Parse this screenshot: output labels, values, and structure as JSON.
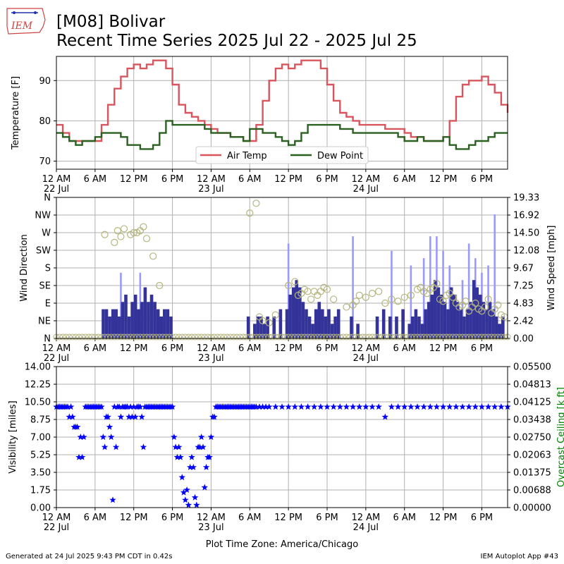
{
  "header": {
    "title_line1": "[M08] Bolivar",
    "title_line2": "Recent Time Series 2025 Jul 22 - 2025 Jul 25",
    "logo_text": "IEM"
  },
  "footer": {
    "left": "Generated at 24 Jul 2025 9:43 PM CDT in 0.42s",
    "right": "IEM Autoplot App #43"
  },
  "colors": {
    "air_temp": "#d9555e",
    "dew_point": "#2b6120",
    "wind_bar": "#333399",
    "wind_gust": "#9999ff",
    "wind_dir": "#b5b57d",
    "visibility": "#0000ff",
    "ceiling_label": "#008000",
    "grid": "#b0b0b0"
  },
  "x_axis": {
    "tick_labels": [
      "12 AM",
      "6 AM",
      "12 PM",
      "6 PM",
      "12 AM",
      "6 AM",
      "12 PM",
      "6 PM",
      "12 AM",
      "6 AM",
      "12 PM",
      "6 PM"
    ],
    "date_labels": [
      "22 Jul",
      "23 Jul",
      "24 Jul"
    ],
    "xlabel": "Plot Time Zone: America/Chicago",
    "range_hours": [
      0,
      70
    ]
  },
  "chart_data": [
    {
      "type": "line",
      "title": "",
      "ylabel": "Temperature [F]",
      "ylim": [
        68,
        96
      ],
      "yticks": [
        "70",
        "80",
        "90"
      ],
      "ytick_values": [
        70,
        80,
        90
      ],
      "grid": true,
      "legend_position": "bottom-center",
      "series": [
        {
          "name": "Air Temp",
          "x": [
            0,
            1,
            2,
            3,
            4,
            5,
            6,
            7,
            8,
            9,
            10,
            11,
            12,
            13,
            14,
            15,
            16,
            17,
            18,
            19,
            20,
            21,
            22,
            23,
            24,
            25,
            26,
            27,
            28,
            29,
            30,
            31,
            32,
            33,
            34,
            35,
            36,
            37,
            38,
            39,
            40,
            41,
            42,
            43,
            44,
            45,
            46,
            47,
            48,
            49,
            50,
            51,
            52,
            53,
            54,
            55,
            56,
            57,
            58,
            59,
            60,
            61,
            62,
            63,
            64,
            65,
            66,
            67,
            68,
            69,
            70
          ],
          "y": [
            79,
            77,
            75,
            75,
            75,
            75,
            75,
            79,
            84,
            88,
            91,
            93,
            94,
            93,
            94,
            95,
            95,
            93,
            89,
            84,
            82,
            81,
            80,
            79,
            78,
            77,
            77,
            76,
            76,
            75,
            75,
            79,
            85,
            90,
            93,
            94,
            93,
            94,
            95,
            95,
            95,
            93,
            89,
            85,
            82,
            81,
            80,
            79,
            79,
            79,
            79,
            78,
            78,
            78,
            77,
            76,
            76,
            75,
            75,
            75,
            76,
            80,
            86,
            89,
            90,
            90,
            91,
            89,
            87,
            84,
            82
          ]
        },
        {
          "name": "Dew Point",
          "x": [
            0,
            1,
            2,
            3,
            4,
            5,
            6,
            7,
            8,
            9,
            10,
            11,
            12,
            13,
            14,
            15,
            16,
            17,
            18,
            19,
            20,
            21,
            22,
            23,
            24,
            25,
            26,
            27,
            28,
            29,
            30,
            31,
            32,
            33,
            34,
            35,
            36,
            37,
            38,
            39,
            40,
            41,
            42,
            43,
            44,
            45,
            46,
            47,
            48,
            49,
            50,
            51,
            52,
            53,
            54,
            55,
            56,
            57,
            58,
            59,
            60,
            61,
            62,
            63,
            64,
            65,
            66,
            67,
            68,
            69,
            70
          ],
          "y": [
            77,
            76,
            75,
            74,
            75,
            75,
            76,
            77,
            77,
            77,
            76,
            74,
            74,
            73,
            73,
            74,
            77,
            80,
            79,
            79,
            79,
            79,
            79,
            78,
            77,
            77,
            77,
            76,
            76,
            75,
            78,
            78,
            77,
            77,
            76,
            75,
            74,
            75,
            77,
            79,
            79,
            79,
            79,
            79,
            78,
            78,
            77,
            77,
            77,
            77,
            77,
            77,
            77,
            76,
            75,
            75,
            76,
            75,
            75,
            75,
            76,
            74,
            73,
            73,
            74,
            75,
            75,
            76,
            77,
            77,
            77
          ]
        }
      ]
    },
    {
      "type": "bar",
      "title": "",
      "ylabel": "Wind Direction",
      "y2label": "Wind Speed [mph]",
      "ylim": [
        0,
        360
      ],
      "y2lim": [
        0,
        19.33
      ],
      "yticks": [
        "N",
        "NE",
        "E",
        "SE",
        "S",
        "SW",
        "W",
        "NW",
        "N"
      ],
      "y2ticks": [
        "0.00",
        "2.42",
        "4.83",
        "7.25",
        "9.67",
        "12.08",
        "14.50",
        "16.92",
        "19.33"
      ],
      "grid": true,
      "series": [
        {
          "name": "",
          "x": [
            7.5,
            8,
            8.5,
            9,
            9.5,
            10,
            10.5,
            11,
            11.5,
            12,
            12.5,
            13,
            13.5,
            14,
            14.5,
            15,
            15.5,
            16,
            16.5,
            17,
            17.5,
            18,
            30,
            31,
            31.5,
            32,
            32.5,
            33,
            34,
            35,
            36,
            36.5,
            37,
            37.5,
            38,
            38.5,
            39,
            39.5,
            40,
            40.5,
            41,
            41.5,
            42,
            42.5,
            43,
            43.5,
            44,
            46,
            47,
            50,
            51,
            52,
            53,
            54,
            55,
            55.5,
            56,
            56.5,
            57,
            57.5,
            58,
            58.5,
            59,
            59.5,
            60,
            60.5,
            61,
            61.5,
            62,
            62.5,
            63,
            63.5,
            64,
            64.5,
            65,
            65.5,
            66,
            66.5,
            67,
            67.5,
            68,
            68.5,
            69,
            69.5
          ],
          "values": [
            4,
            4,
            3,
            4,
            4,
            3,
            5,
            6,
            3,
            5,
            6,
            4,
            5,
            7,
            5,
            6,
            5,
            4,
            3,
            4,
            4,
            3,
            3,
            2,
            3,
            3,
            2,
            3,
            3,
            4,
            4,
            6,
            7,
            8,
            7,
            5,
            4,
            3,
            2,
            4,
            5,
            4,
            3,
            4,
            2,
            3,
            4,
            3,
            2,
            3,
            4,
            3,
            3,
            4,
            2,
            3,
            4,
            3,
            2,
            4,
            5,
            6,
            8,
            7,
            6,
            5,
            4,
            7,
            6,
            5,
            4,
            3,
            4,
            5,
            8,
            7,
            6,
            5,
            4,
            5,
            4,
            3,
            2,
            3
          ]
        },
        {
          "name": "",
          "x": [
            10,
            13,
            36,
            46,
            52,
            55,
            57,
            58,
            59,
            60,
            61,
            62,
            63,
            64,
            65,
            66,
            67,
            68
          ],
          "values": [
            9,
            9,
            13,
            14,
            12,
            10,
            11,
            14,
            14,
            12,
            10,
            6,
            8,
            13,
            11,
            9,
            10,
            17
          ]
        },
        {
          "name": "",
          "type": "scatter",
          "x": [
            7.5,
            9,
            9.5,
            10,
            10.5,
            11.5,
            12,
            12.5,
            13,
            13.5,
            14,
            15,
            16,
            30,
            31,
            31.5,
            32,
            33,
            34,
            36,
            37,
            37.5,
            38,
            38.5,
            39,
            39.5,
            40,
            40.5,
            41,
            41.5,
            42,
            43,
            45,
            46,
            46.5,
            47,
            48,
            49,
            50,
            51,
            52,
            53,
            54,
            55,
            56,
            56.5,
            57,
            57.5,
            58,
            58.5,
            59,
            59.5,
            60,
            60.5,
            61,
            61.5,
            62,
            62.5,
            63,
            63.5,
            64,
            64.5,
            65,
            65.5,
            66,
            66.5,
            67,
            67.5,
            68,
            68.5,
            69,
            69.5
          ],
          "y": [
            265,
            245,
            275,
            260,
            280,
            265,
            270,
            270,
            275,
            285,
            255,
            210,
            135,
            320,
            345,
            55,
            45,
            40,
            60,
            135,
            145,
            110,
            115,
            125,
            120,
            100,
            120,
            110,
            120,
            130,
            125,
            100,
            80,
            85,
            95,
            110,
            105,
            115,
            120,
            90,
            100,
            95,
            105,
            110,
            125,
            130,
            120,
            115,
            125,
            130,
            140,
            100,
            95,
            110,
            115,
            105,
            90,
            80,
            85,
            95,
            70,
            80,
            90,
            75,
            70,
            80,
            100,
            65,
            75,
            85,
            60,
            55
          ]
        }
      ]
    },
    {
      "type": "scatter",
      "title": "",
      "ylabel": "Visibility [miles]",
      "y2label": "Overcast Ceiling [k ft]",
      "ylim": [
        0,
        14
      ],
      "y2lim": [
        0,
        0.055
      ],
      "yticks": [
        "0.00",
        "1.75",
        "3.50",
        "5.25",
        "7.00",
        "8.75",
        "10.50",
        "12.25",
        "14.00"
      ],
      "y2ticks": [
        "0.00000",
        "0.00688",
        "0.01375",
        "0.02063",
        "0.02750",
        "0.03438",
        "0.04125",
        "0.04813",
        "0.05500"
      ],
      "grid": true,
      "series": [
        {
          "name": "",
          "x": [
            0,
            0.25,
            0.5,
            0.75,
            1,
            1.25,
            1.5,
            1.75,
            2,
            2.25,
            2.5,
            2.75,
            3,
            3.25,
            3.5,
            3.75,
            4,
            4.25,
            4.5,
            4.75,
            5,
            5.25,
            5.5,
            5.75,
            6,
            6.25,
            6.5,
            6.75,
            7,
            7.25,
            7.5,
            7.75,
            8,
            8.25,
            8.5,
            8.75,
            9,
            9.25,
            9.5,
            9.75,
            10,
            10.25,
            10.5,
            10.75,
            11,
            11.25,
            11.5,
            11.75,
            12,
            12.25,
            12.5,
            12.75,
            13,
            13.25,
            13.5,
            13.75,
            14,
            14.25,
            14.5,
            14.75,
            15,
            15.25,
            15.5,
            15.75,
            16,
            16.25,
            16.5,
            16.75,
            17,
            17.25,
            17.5,
            17.75,
            18,
            18.25,
            18.5,
            18.75,
            19,
            19.25,
            19.5,
            19.75,
            20,
            20.25,
            20.5,
            20.75,
            21,
            21.25,
            21.5,
            21.75,
            22,
            22.25,
            22.5,
            22.75,
            23,
            23.25,
            23.5,
            23.75,
            24,
            24.25,
            24.5,
            24.75,
            25,
            25.25,
            25.5,
            25.75,
            26,
            26.25,
            26.5,
            26.75,
            27,
            27.25,
            27.5,
            27.75,
            28,
            28.25,
            28.5,
            28.75,
            29,
            29.25,
            29.5,
            29.75,
            30,
            30.25,
            30.5,
            30.75,
            31,
            31.5,
            32,
            32.5,
            33,
            34,
            35,
            36,
            37,
            38,
            39,
            40,
            41,
            42,
            43,
            44,
            45,
            46,
            47,
            48,
            49,
            50,
            51,
            52,
            53,
            54,
            55,
            56,
            57,
            58,
            59,
            60,
            61,
            62,
            63,
            64,
            65,
            66,
            67,
            68,
            69,
            70
          ],
          "y": [
            10,
            10,
            10,
            10,
            10,
            10,
            10,
            10,
            9,
            10,
            9,
            8,
            8,
            8,
            5,
            7,
            5,
            7,
            10,
            10,
            10,
            10,
            10,
            10,
            10,
            10,
            10,
            10,
            10,
            7,
            6,
            9,
            9,
            8,
            7,
            0.75,
            10,
            6,
            10,
            10,
            9,
            10,
            10,
            10,
            10,
            9,
            10,
            9,
            10,
            9,
            10,
            10,
            10,
            9,
            6,
            10,
            10,
            10,
            10,
            10,
            10,
            10,
            10,
            10,
            10,
            10,
            10,
            10,
            10,
            10,
            10,
            10,
            10,
            7,
            6,
            5,
            6,
            5,
            3,
            1.5,
            0.75,
            1.75,
            0.25,
            4,
            5,
            4,
            1,
            0.25,
            6,
            6,
            7,
            6,
            2,
            4,
            5,
            5,
            7,
            9,
            9,
            10,
            10,
            10,
            10,
            10,
            10,
            10,
            10,
            10,
            10,
            10,
            10,
            10,
            10,
            10,
            10,
            10,
            10,
            10,
            10,
            10,
            10,
            10,
            10,
            10,
            10,
            10,
            10,
            10,
            10,
            10,
            10,
            10,
            10,
            10,
            10,
            10,
            10,
            10,
            10,
            10,
            10,
            10,
            10,
            10,
            10,
            10,
            9,
            10,
            10,
            10,
            10,
            10,
            10,
            10,
            10,
            10,
            10,
            10,
            10,
            10,
            10,
            10,
            10,
            10,
            10,
            10
          ]
        }
      ]
    }
  ]
}
